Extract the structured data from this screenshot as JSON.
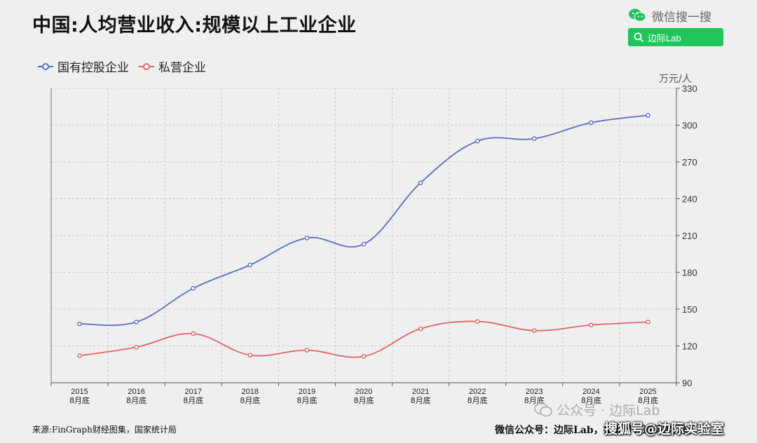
{
  "header": {
    "title": "中国:人均营业收入:规模以上工业企业"
  },
  "wechat": {
    "search_text": "微信搜一搜",
    "search_query": "边际Lab"
  },
  "colors": {
    "state_owned": "#5b6fc0",
    "private": "#e06666",
    "search_green": "#1fc65b"
  },
  "chart_data": {
    "type": "line",
    "smooth": true,
    "unit": "万元/人",
    "categories": [
      [
        "2015",
        "8月底"
      ],
      [
        "2016",
        "8月底"
      ],
      [
        "2017",
        "8月底"
      ],
      [
        "2018",
        "8月底"
      ],
      [
        "2019",
        "8月底"
      ],
      [
        "2020",
        "8月底"
      ],
      [
        "2021",
        "8月底"
      ],
      [
        "2022",
        "8月底"
      ],
      [
        "2023",
        "8月底"
      ],
      [
        "2024",
        "8月底"
      ],
      [
        "2025",
        "8月底"
      ]
    ],
    "series": [
      {
        "name": "国有控股企业",
        "color": "#5b6fc0",
        "values": [
          138,
          139.5,
          167,
          186,
          208,
          203,
          253,
          287,
          289,
          302,
          308
        ]
      },
      {
        "name": "私营企业",
        "color": "#e06666",
        "values": [
          112,
          119,
          130,
          112.5,
          116.5,
          111.5,
          134,
          140,
          132.5,
          137,
          139.5
        ]
      }
    ],
    "yaxis": {
      "position": "right",
      "min": 90,
      "max": 330,
      "ticks": [
        90,
        120,
        150,
        180,
        210,
        240,
        270,
        300,
        330
      ]
    },
    "grid": true,
    "legend": "top-left"
  },
  "footer": {
    "source": "来源:FinGraph财经图集，国家统计局",
    "account": "微信公众号：边际Lab，搜狐号：边际实验室"
  },
  "watermarks": {
    "faint": "公众号 · 边际Lab",
    "strong": "搜狐号@边际实验室"
  }
}
